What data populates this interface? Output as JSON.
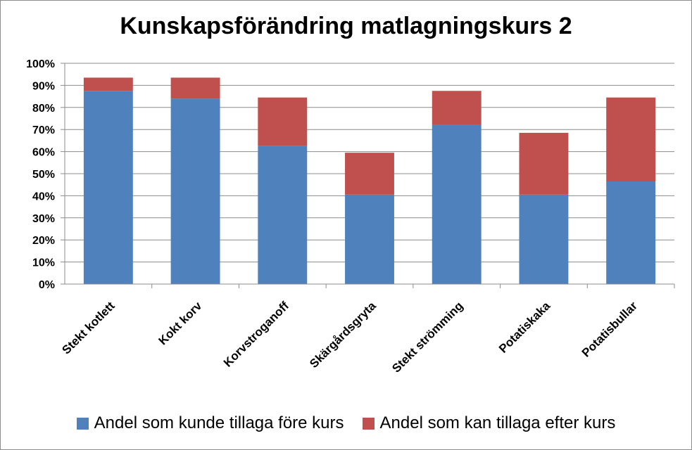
{
  "chart_data": {
    "type": "bar",
    "stacked": true,
    "title": "Kunskapsförändring matlagningskurs  2",
    "categories": [
      "Stekt kotlett",
      "Kokt korv",
      "Korvstroganoff",
      "Skärgårdsgryta",
      "Stekt strömming",
      "Potatiskaka",
      "Potatisbullar"
    ],
    "series": [
      {
        "name": "Andel som kunde tillaga före kurs",
        "color": "#4F81BD",
        "values": [
          0.875,
          0.84,
          0.625,
          0.405,
          0.72,
          0.405,
          0.465
        ]
      },
      {
        "name": "Andel som kan tillaga efter kurs",
        "color": "#C0504D",
        "values": [
          0.06,
          0.095,
          0.22,
          0.19,
          0.155,
          0.28,
          0.38
        ]
      }
    ],
    "ylim": [
      0,
      1
    ],
    "yticks": [
      "0%",
      "10%",
      "20%",
      "30%",
      "40%",
      "50%",
      "60%",
      "70%",
      "80%",
      "90%",
      "100%"
    ],
    "grid": true,
    "legend_position": "bottom"
  }
}
